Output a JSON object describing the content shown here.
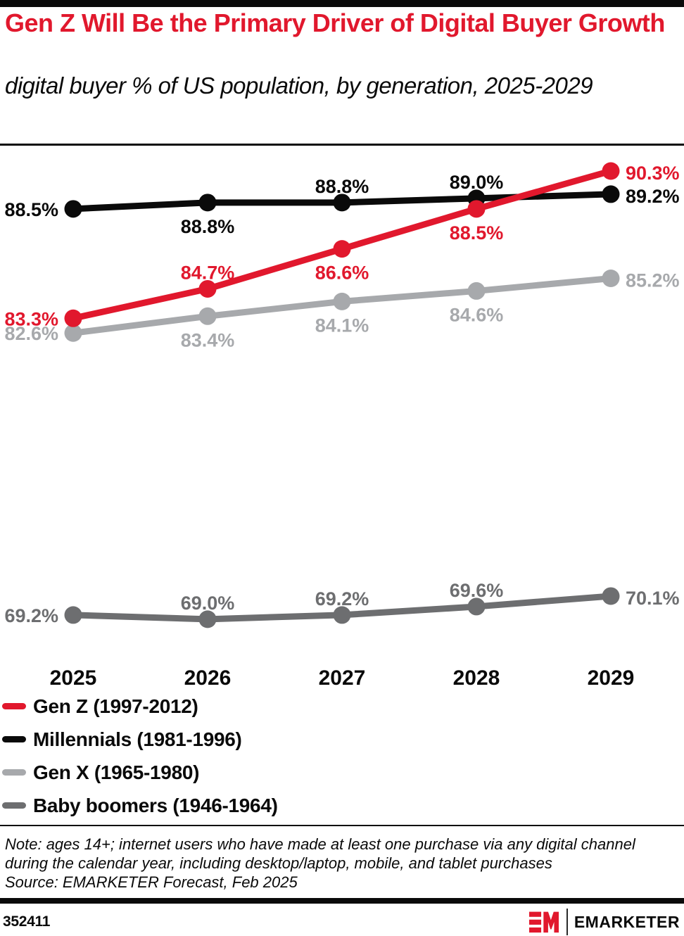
{
  "header": {
    "title": "Gen Z Will Be the Primary Driver of Digital Buyer Growth",
    "subtitle": "digital buyer % of US population, by generation, 2025-2029",
    "accent_color": "#e1182d"
  },
  "chart_data": {
    "type": "line",
    "title": "Gen Z Will Be the Primary Driver of Digital Buyer Growth",
    "subtitle": "digital buyer % of US population, by generation, 2025-2029",
    "x": [
      2025,
      2026,
      2027,
      2028,
      2029
    ],
    "unit": "%",
    "ylim": [
      67,
      92
    ],
    "grid": false,
    "axes_hidden": true,
    "data_labels": true,
    "legend_position": "bottom-left",
    "series": [
      {
        "name": "Gen Z (1997-2012)",
        "color": "#e1182d",
        "values": [
          83.3,
          84.7,
          86.6,
          88.5,
          90.3
        ]
      },
      {
        "name": "Millennials (1981-1996)",
        "color": "#0a0a0a",
        "values": [
          88.5,
          88.8,
          88.8,
          89.0,
          89.2
        ]
      },
      {
        "name": "Gen X (1965-1980)",
        "color": "#a7a9ac",
        "values": [
          82.6,
          83.4,
          84.1,
          84.6,
          85.2
        ]
      },
      {
        "name": "Baby boomers (1946-1964)",
        "color": "#6d6e70",
        "values": [
          69.2,
          69.0,
          69.2,
          69.6,
          70.1
        ]
      }
    ]
  },
  "footer": {
    "note": "Note: ages 14+; internet users who have made at least one purchase via any digital channel during the calendar year, including desktop/laptop, mobile, and tablet purchases",
    "source": "Source: EMARKETER Forecast, Feb 2025",
    "chart_id": "352411",
    "brand": "EMARKETER"
  }
}
